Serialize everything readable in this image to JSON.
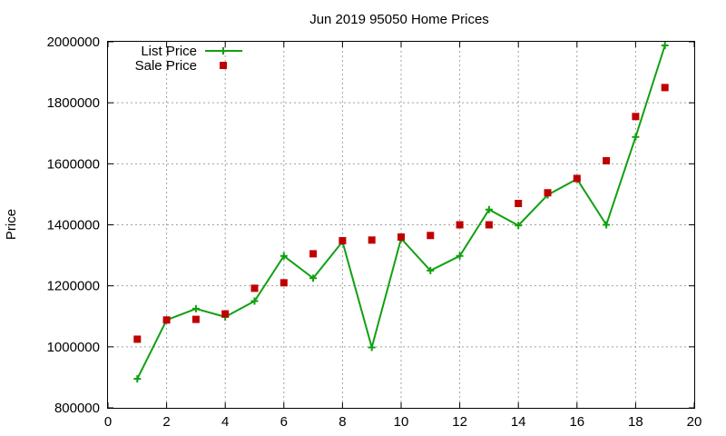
{
  "chart_data": {
    "type": "line",
    "title": "Jun 2019 95050 Home Prices",
    "xlabel": "",
    "ylabel": "Price",
    "xlim": [
      0,
      20
    ],
    "ylim": [
      800000,
      2000000
    ],
    "x_ticks": [
      0,
      2,
      4,
      6,
      8,
      10,
      12,
      14,
      16,
      18,
      20
    ],
    "y_ticks": [
      800000,
      1000000,
      1200000,
      1400000,
      1600000,
      1800000,
      2000000
    ],
    "grid": true,
    "legend_position": "top-left",
    "series": [
      {
        "name": "List Price",
        "style": "line-with-plus-markers",
        "color": "#11a011",
        "x": [
          1,
          2,
          3,
          4,
          5,
          6,
          7,
          8,
          9,
          10,
          11,
          12,
          13,
          14,
          15,
          16,
          17,
          18,
          19
        ],
        "values": [
          895000,
          1088000,
          1125000,
          1098000,
          1150000,
          1298000,
          1225000,
          1345000,
          998000,
          1355000,
          1250000,
          1298000,
          1450000,
          1398000,
          1498000,
          1550000,
          1400000,
          1688000,
          1988000
        ]
      },
      {
        "name": "Sale Price",
        "style": "square-markers",
        "color": "#c00000",
        "x": [
          1,
          2,
          3,
          4,
          5,
          6,
          7,
          8,
          9,
          10,
          11,
          12,
          13,
          14,
          15,
          16,
          17,
          18,
          19
        ],
        "values": [
          1025000,
          1088000,
          1090000,
          1108000,
          1192000,
          1210000,
          1305000,
          1348000,
          1350000,
          1360000,
          1365000,
          1400000,
          1400000,
          1470000,
          1505000,
          1552000,
          1610000,
          1755000,
          1850000
        ]
      }
    ]
  }
}
